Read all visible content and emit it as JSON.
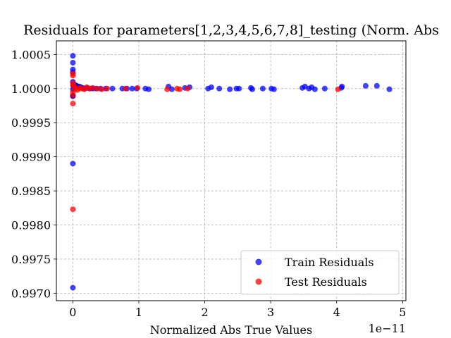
{
  "chart_data": {
    "type": "scatter",
    "title": "Residuals for parameters[1,2,3,4,5,6,7,8]_testing (Norm. Abs",
    "xlabel": "Normalized Abs True Values",
    "ylabel": "",
    "x_offset_text": "1e−11",
    "xlim": [
      -0.25,
      5.05
    ],
    "ylim": [
      0.99689,
      1.0007
    ],
    "x_ticks": [
      0,
      1,
      2,
      3,
      4,
      5
    ],
    "x_tick_labels": [
      "0",
      "1",
      "2",
      "3",
      "4",
      "5"
    ],
    "y_ticks": [
      0.997,
      0.9975,
      0.998,
      0.9985,
      0.999,
      0.9995,
      1.0,
      1.0005
    ],
    "y_tick_labels": [
      "0.9970",
      "0.9975",
      "0.9980",
      "0.9985",
      "0.9990",
      "0.9995",
      "1.0000",
      "1.0005"
    ],
    "grid": true,
    "legend_position": "lower-right",
    "series": [
      {
        "name": "Train Residuals",
        "color": "#0000ff",
        "points": [
          [
            0,
            1.00048
          ],
          [
            0,
            1.00038
          ],
          [
            0,
            1.00028
          ],
          [
            0,
            1.00024
          ],
          [
            0,
            1.0001
          ],
          [
            0,
            0.99999
          ],
          [
            0,
            0.9999
          ],
          [
            0,
            0.99989
          ],
          [
            0,
            0.99989
          ],
          [
            0,
            0.9989
          ],
          [
            0,
            0.99708
          ],
          [
            0.01,
            1.00003
          ],
          [
            0.02,
            1.00006
          ],
          [
            0.03,
            1.00005
          ],
          [
            0.04,
            1.00005
          ],
          [
            0.06,
            1.00004
          ],
          [
            0.08,
            1.00003
          ],
          [
            0.1,
            1.00003
          ],
          [
            0.12,
            1.00002
          ],
          [
            0.15,
            1.00001
          ],
          [
            0.18,
            1.0
          ],
          [
            0.22,
            1.00001
          ],
          [
            0.26,
            1.0
          ],
          [
            0.3,
            1.0
          ],
          [
            0.35,
            1.0
          ],
          [
            0.42,
            1.0
          ],
          [
            0.5,
            1.0
          ],
          [
            0.6,
            1.0
          ],
          [
            0.75,
            1.0
          ],
          [
            0.82,
            1.0
          ],
          [
            0.9,
            1.0
          ],
          [
            0.97,
            1.0
          ],
          [
            1.1,
            1.0
          ],
          [
            1.15,
            0.99999
          ],
          [
            1.45,
            1.00003
          ],
          [
            1.5,
            0.99999
          ],
          [
            1.7,
            1.00001
          ],
          [
            1.77,
            1.00002
          ],
          [
            2.05,
            1.0
          ],
          [
            2.1,
            1.00002
          ],
          [
            2.22,
            1.0
          ],
          [
            2.38,
            0.99999
          ],
          [
            2.48,
            1.0
          ],
          [
            2.52,
            1.0
          ],
          [
            2.7,
            1.00001
          ],
          [
            2.72,
            0.99999
          ],
          [
            2.88,
            1.0
          ],
          [
            3.01,
            1.0
          ],
          [
            3.05,
            0.99999
          ],
          [
            3.48,
            1.00001
          ],
          [
            3.52,
            1.00003
          ],
          [
            3.58,
            1.0
          ],
          [
            3.62,
            1.00002
          ],
          [
            3.67,
            0.99999
          ],
          [
            3.82,
            1.0
          ],
          [
            4.07,
            1.00001
          ],
          [
            4.08,
            1.00003
          ],
          [
            4.44,
            1.00004
          ],
          [
            4.61,
            1.00004
          ],
          [
            4.8,
            0.99999
          ]
        ]
      },
      {
        "name": "Test Residuals",
        "color": "#ff0000",
        "points": [
          [
            0,
            1.00022
          ],
          [
            0,
            1.00019
          ],
          [
            0,
            1.00008
          ],
          [
            0,
            1.00005
          ],
          [
            0,
            0.99995
          ],
          [
            0,
            0.9999
          ],
          [
            0,
            0.99978
          ],
          [
            0,
            0.99823
          ],
          [
            0.02,
            1.00003
          ],
          [
            0.04,
            1.0
          ],
          [
            0.07,
            0.99998
          ],
          [
            0.1,
            1.00001
          ],
          [
            0.13,
            1.0
          ],
          [
            0.17,
            0.99999
          ],
          [
            0.21,
            1.00002
          ],
          [
            0.25,
            1.0
          ],
          [
            0.3,
            1.00001
          ],
          [
            0.37,
            1.0
          ],
          [
            0.44,
            0.99999
          ],
          [
            0.52,
            1.0
          ],
          [
            0.8,
            1.0
          ],
          [
            0.98,
            1.00001
          ],
          [
            1.43,
            0.99999
          ],
          [
            1.58,
            1.0
          ],
          [
            1.62,
            0.99999
          ],
          [
            1.74,
            1.0
          ],
          [
            4.02,
            0.99999
          ]
        ]
      }
    ]
  }
}
